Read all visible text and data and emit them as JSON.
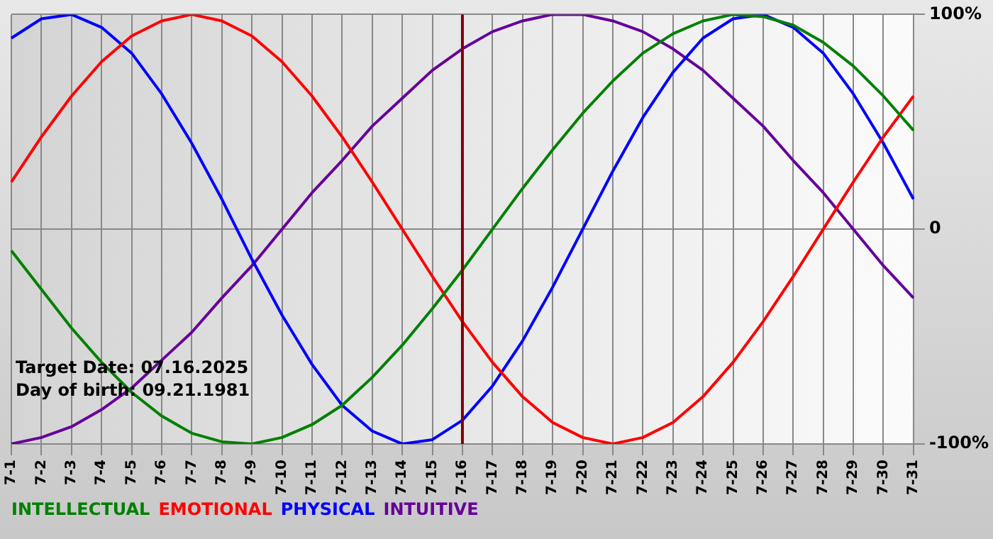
{
  "chart_data": {
    "type": "line",
    "categories": [
      "7-1",
      "7-2",
      "7-3",
      "7-4",
      "7-5",
      "7-6",
      "7-7",
      "7-8",
      "7-9",
      "7-10",
      "7-11",
      "7-12",
      "7-13",
      "7-14",
      "7-15",
      "7-16",
      "7-17",
      "7-18",
      "7-19",
      "7-20",
      "7-21",
      "7-22",
      "7-23",
      "7-24",
      "7-25",
      "7-26",
      "7-27",
      "7-28",
      "7-29",
      "7-30",
      "7-31"
    ],
    "series": [
      {
        "name": "INTELLECTUAL",
        "color": "#008000",
        "values": [
          -10,
          -28,
          -46,
          -62,
          -76,
          -87,
          -95,
          -99,
          -100,
          -97,
          -91,
          -82,
          -69,
          -54,
          -37,
          -19,
          0,
          19,
          37,
          54,
          69,
          82,
          91,
          97,
          100,
          99,
          95,
          87,
          76,
          62,
          46
        ]
      },
      {
        "name": "EMOTIONAL",
        "color": "#ff0000",
        "values": [
          22,
          43,
          62,
          78,
          90,
          97,
          100,
          97,
          90,
          78,
          62,
          43,
          22,
          0,
          -22,
          -43,
          -62,
          -78,
          -90,
          -97,
          -100,
          -97,
          -90,
          -78,
          -62,
          -43,
          -22,
          0,
          22,
          43,
          62
        ]
      },
      {
        "name": "PHYSICAL",
        "color": "#0000ff",
        "values": [
          89,
          98,
          100,
          94,
          82,
          63,
          40,
          14,
          -14,
          -40,
          -63,
          -82,
          -94,
          -100,
          -98,
          -89,
          -73,
          -52,
          -27,
          0,
          27,
          52,
          73,
          89,
          98,
          100,
          94,
          82,
          63,
          40,
          14
        ]
      },
      {
        "name": "INTUITIVE",
        "color": "#660099",
        "values": [
          -100,
          -97,
          -92,
          -84,
          -74,
          -61,
          -48,
          -32,
          -17,
          0,
          17,
          32,
          48,
          61,
          74,
          84,
          92,
          97,
          100,
          100,
          97,
          92,
          84,
          74,
          61,
          48,
          32,
          17,
          0,
          -17,
          -32
        ]
      }
    ],
    "ylim": [
      -100,
      100
    ],
    "yticks": [
      {
        "value": -100,
        "label": "-100%"
      },
      0,
      {
        "value": 100,
        "label": "100%"
      }
    ],
    "grid": true,
    "legend": "bottom",
    "marker": "none",
    "line_style": "solid",
    "ref_lines": [
      {
        "axis": "x",
        "value": "7-16",
        "color": "#800000"
      }
    ],
    "annotations": [
      "Target Date: 07.16.2025",
      "Day of birth: 09.21.1981"
    ]
  }
}
